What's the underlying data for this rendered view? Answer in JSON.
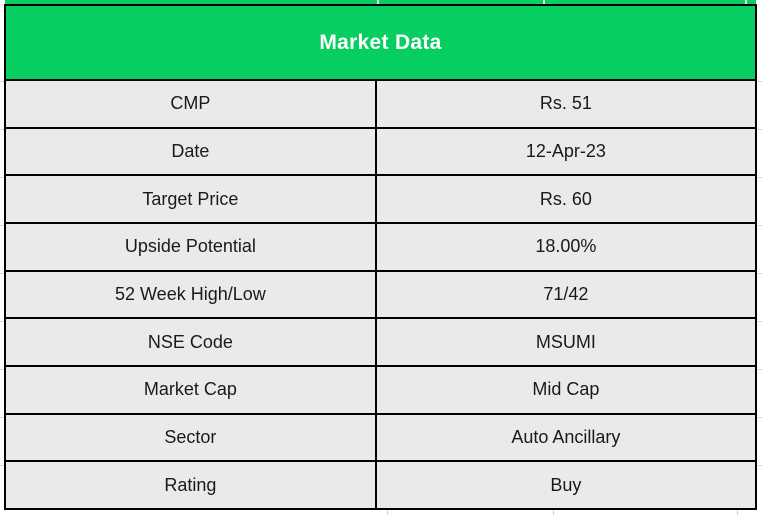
{
  "table": {
    "title": "Market Data",
    "rows": [
      {
        "label": "CMP",
        "value": "Rs. 51"
      },
      {
        "label": "Date",
        "value": "12-Apr-23"
      },
      {
        "label": "Target Price",
        "value": "Rs. 60"
      },
      {
        "label": "Upside Potential",
        "value": "18.00%"
      },
      {
        "label": "52 Week High/Low",
        "value": "71/42"
      },
      {
        "label": "NSE Code",
        "value": "MSUMI"
      },
      {
        "label": "Market Cap",
        "value": "Mid Cap"
      },
      {
        "label": "Sector",
        "value": "Auto Ancillary"
      },
      {
        "label": "Rating",
        "value": "Buy"
      }
    ],
    "colors": {
      "header_bg": "#07CE60",
      "header_text": "#FFFFFF",
      "row_bg": "#E9EAEC",
      "border": "#010101",
      "cell_text": "#1A1A1A"
    }
  }
}
